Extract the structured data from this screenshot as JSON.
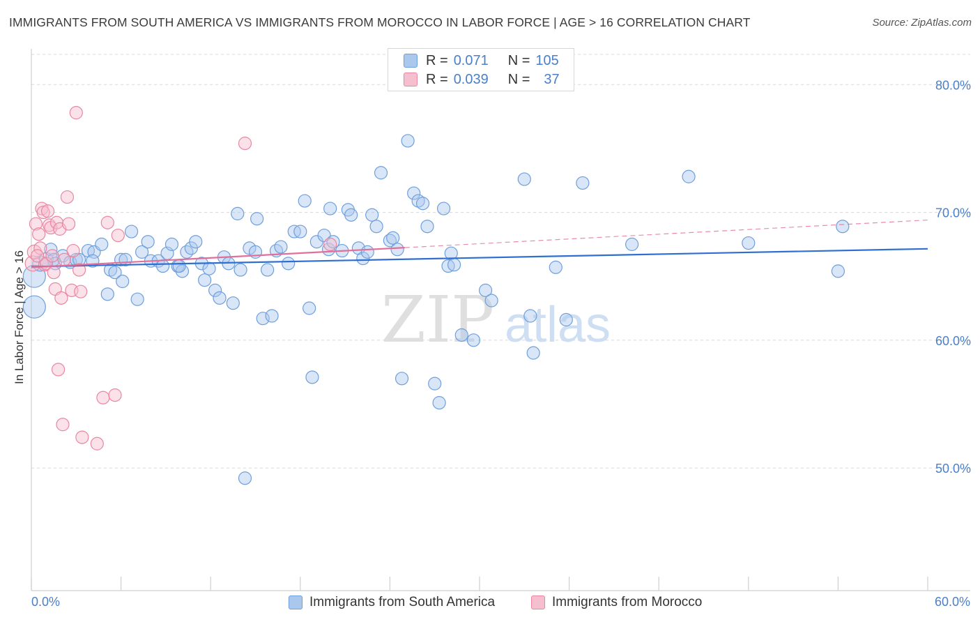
{
  "header": {
    "title": "IMMIGRANTS FROM SOUTH AMERICA VS IMMIGRANTS FROM MOROCCO IN LABOR FORCE | AGE > 16 CORRELATION CHART",
    "source": "Source: ZipAtlas.com"
  },
  "legend": {
    "rows": [
      {
        "r_label": "R =",
        "r_value": "0.071",
        "n_label": "N =",
        "n_value": "105"
      },
      {
        "r_label": "R =",
        "r_value": "0.039",
        "n_label": "N =",
        "n_value": "37"
      }
    ]
  },
  "watermark": {
    "zip": "ZIP",
    "atlas": "atlas"
  },
  "colors": {
    "blue_fill": "#aac8ee",
    "blue_stroke": "#6e9fdc",
    "blue_line": "#2f6fcf",
    "pink_fill": "#f6bfd0",
    "pink_stroke": "#e8879f",
    "pink_line": "#e0709a",
    "axis_label": "#4a7fc9",
    "grid": "#d8d8d8"
  },
  "chart_data": {
    "type": "scatter",
    "title": "IMMIGRANTS FROM SOUTH AMERICA VS IMMIGRANTS FROM MOROCCO IN LABOR FORCE | AGE > 16 CORRELATION CHART",
    "xlabel": "",
    "ylabel": "In Labor Force | Age > 16",
    "xlim": [
      0,
      60
    ],
    "ylim": [
      40.4,
      82.8
    ],
    "x_tick_labels": [
      "0.0%",
      "60.0%"
    ],
    "y_ticks": [
      50,
      60,
      70,
      80
    ],
    "y_tick_labels": [
      "50.0%",
      "60.0%",
      "70.0%",
      "80.0%"
    ],
    "grid": true,
    "legend_position": "bottom",
    "series": [
      {
        "name": "Immigrants from South America",
        "color": "blue",
        "R": 0.071,
        "N": 105,
        "trend": {
          "x0": 0,
          "y0": 65.75,
          "x1": 60,
          "y1": 67.15
        },
        "points": [
          [
            0.2,
            65.0,
            16
          ],
          [
            0.2,
            62.6,
            16
          ],
          [
            0.6,
            66.0,
            11
          ],
          [
            1.0,
            66.3,
            10
          ],
          [
            1.3,
            67.1,
            9
          ],
          [
            1.5,
            66.3,
            9
          ],
          [
            2.1,
            66.6,
            9
          ],
          [
            2.6,
            66.1,
            9
          ],
          [
            3.0,
            66.3,
            9
          ],
          [
            3.8,
            67.0,
            9
          ],
          [
            4.2,
            66.9,
            9
          ],
          [
            4.7,
            67.5,
            9
          ],
          [
            5.1,
            63.6,
            9
          ],
          [
            5.3,
            65.5,
            9
          ],
          [
            5.6,
            65.3,
            9
          ],
          [
            6.0,
            66.3,
            9
          ],
          [
            6.1,
            64.6,
            9
          ],
          [
            6.3,
            66.3,
            9
          ],
          [
            6.7,
            68.5,
            9
          ],
          [
            7.1,
            63.2,
            9
          ],
          [
            7.4,
            66.9,
            9
          ],
          [
            7.8,
            67.7,
            9
          ],
          [
            8.0,
            66.2,
            9
          ],
          [
            8.5,
            66.2,
            9
          ],
          [
            8.8,
            65.8,
            9
          ],
          [
            9.1,
            66.8,
            9
          ],
          [
            9.4,
            67.5,
            9
          ],
          [
            9.8,
            65.8,
            9
          ],
          [
            10.1,
            65.4,
            9
          ],
          [
            10.4,
            66.9,
            9
          ],
          [
            10.7,
            67.2,
            9
          ],
          [
            11.0,
            67.7,
            9
          ],
          [
            11.4,
            66.0,
            9
          ],
          [
            11.6,
            64.7,
            9
          ],
          [
            11.9,
            65.6,
            9
          ],
          [
            12.3,
            63.9,
            9
          ],
          [
            12.6,
            63.3,
            9
          ],
          [
            12.9,
            66.5,
            9
          ],
          [
            13.2,
            66.0,
            9
          ],
          [
            13.5,
            62.9,
            9
          ],
          [
            13.8,
            69.9,
            9
          ],
          [
            14.0,
            65.5,
            9
          ],
          [
            14.3,
            49.2,
            9
          ],
          [
            14.6,
            67.2,
            9
          ],
          [
            15.0,
            66.9,
            9
          ],
          [
            15.1,
            69.5,
            9
          ],
          [
            15.5,
            61.7,
            9
          ],
          [
            15.8,
            65.5,
            9
          ],
          [
            16.1,
            61.9,
            9
          ],
          [
            16.4,
            67.0,
            9
          ],
          [
            16.7,
            67.3,
            9
          ],
          [
            17.2,
            66.0,
            9
          ],
          [
            17.6,
            68.5,
            9
          ],
          [
            18.0,
            68.5,
            9
          ],
          [
            18.3,
            70.9,
            9
          ],
          [
            18.6,
            62.5,
            9
          ],
          [
            18.8,
            57.1,
            9
          ],
          [
            19.1,
            67.7,
            9
          ],
          [
            19.6,
            68.2,
            9
          ],
          [
            19.9,
            67.1,
            9
          ],
          [
            20.2,
            67.7,
            9
          ],
          [
            20.8,
            67.0,
            9
          ],
          [
            21.2,
            70.2,
            9
          ],
          [
            21.4,
            69.8,
            9
          ],
          [
            21.9,
            67.2,
            9
          ],
          [
            22.2,
            66.4,
            9
          ],
          [
            22.5,
            66.9,
            9
          ],
          [
            22.8,
            69.8,
            9
          ],
          [
            23.1,
            68.9,
            9
          ],
          [
            23.4,
            73.1,
            9
          ],
          [
            24.0,
            67.8,
            9
          ],
          [
            24.2,
            68.0,
            9
          ],
          [
            24.5,
            67.1,
            9
          ],
          [
            24.8,
            57.0,
            9
          ],
          [
            25.2,
            75.6,
            9
          ],
          [
            25.6,
            71.5,
            9
          ],
          [
            25.9,
            70.9,
            9
          ],
          [
            26.2,
            70.7,
            9
          ],
          [
            26.5,
            68.9,
            9
          ],
          [
            27.0,
            56.6,
            9
          ],
          [
            27.3,
            55.1,
            9
          ],
          [
            27.6,
            70.3,
            9
          ],
          [
            27.9,
            65.8,
            9
          ],
          [
            28.1,
            66.8,
            9
          ],
          [
            28.3,
            65.9,
            9
          ],
          [
            28.8,
            60.4,
            9
          ],
          [
            29.6,
            60.0,
            9
          ],
          [
            30.4,
            63.9,
            9
          ],
          [
            30.8,
            63.1,
            9
          ],
          [
            33.0,
            72.6,
            9
          ],
          [
            33.4,
            61.9,
            9
          ],
          [
            33.6,
            59.0,
            9
          ],
          [
            35.1,
            65.7,
            9
          ],
          [
            35.8,
            61.6,
            9
          ],
          [
            36.9,
            72.3,
            9
          ],
          [
            40.2,
            67.5,
            9
          ],
          [
            44.0,
            72.8,
            9
          ],
          [
            48.0,
            67.6,
            9
          ],
          [
            54.0,
            65.4,
            9
          ],
          [
            54.3,
            68.9,
            9
          ],
          [
            1.6,
            66.0,
            9
          ],
          [
            4.1,
            66.2,
            9
          ],
          [
            3.2,
            66.3,
            9
          ],
          [
            20.0,
            70.3,
            9
          ],
          [
            9.9,
            65.8,
            9
          ]
        ]
      },
      {
        "name": "Immigrants from Morocco",
        "color": "pink",
        "R": 0.039,
        "N": 37,
        "trend": {
          "x0": 0,
          "y0": 65.7,
          "x1": 60,
          "y1": 69.4
        },
        "trend_solid_until_x": 25.0,
        "points": [
          [
            0.1,
            66.0,
            11
          ],
          [
            0.2,
            66.9,
            10
          ],
          [
            0.3,
            69.1,
            9
          ],
          [
            0.5,
            68.3,
            9
          ],
          [
            0.6,
            67.2,
            9
          ],
          [
            0.7,
            70.3,
            9
          ],
          [
            0.8,
            70.0,
            9
          ],
          [
            0.9,
            65.9,
            9
          ],
          [
            1.0,
            66.0,
            9
          ],
          [
            1.1,
            70.1,
            9
          ],
          [
            1.2,
            69.0,
            9
          ],
          [
            1.3,
            68.8,
            9
          ],
          [
            1.4,
            66.6,
            9
          ],
          [
            1.5,
            65.3,
            9
          ],
          [
            1.6,
            64.0,
            9
          ],
          [
            1.7,
            69.2,
            9
          ],
          [
            1.8,
            57.7,
            9
          ],
          [
            1.9,
            68.7,
            9
          ],
          [
            2.0,
            63.3,
            9
          ],
          [
            2.1,
            53.4,
            9
          ],
          [
            2.4,
            71.2,
            9
          ],
          [
            2.7,
            63.9,
            9
          ],
          [
            2.8,
            67.0,
            9
          ],
          [
            3.0,
            77.8,
            9
          ],
          [
            3.2,
            65.5,
            9
          ],
          [
            3.3,
            63.8,
            9
          ],
          [
            3.4,
            52.4,
            9
          ],
          [
            4.4,
            51.9,
            9
          ],
          [
            4.8,
            55.5,
            9
          ],
          [
            5.1,
            69.2,
            9
          ],
          [
            5.6,
            55.7,
            9
          ],
          [
            5.8,
            68.2,
            9
          ],
          [
            14.3,
            75.4,
            9
          ],
          [
            20.0,
            67.5,
            9
          ],
          [
            2.2,
            66.3,
            9
          ],
          [
            0.4,
            66.6,
            9
          ],
          [
            2.5,
            69.1,
            9
          ]
        ]
      }
    ]
  },
  "bottom_legend": {
    "items": [
      "Immigrants from South America",
      "Immigrants from Morocco"
    ]
  }
}
